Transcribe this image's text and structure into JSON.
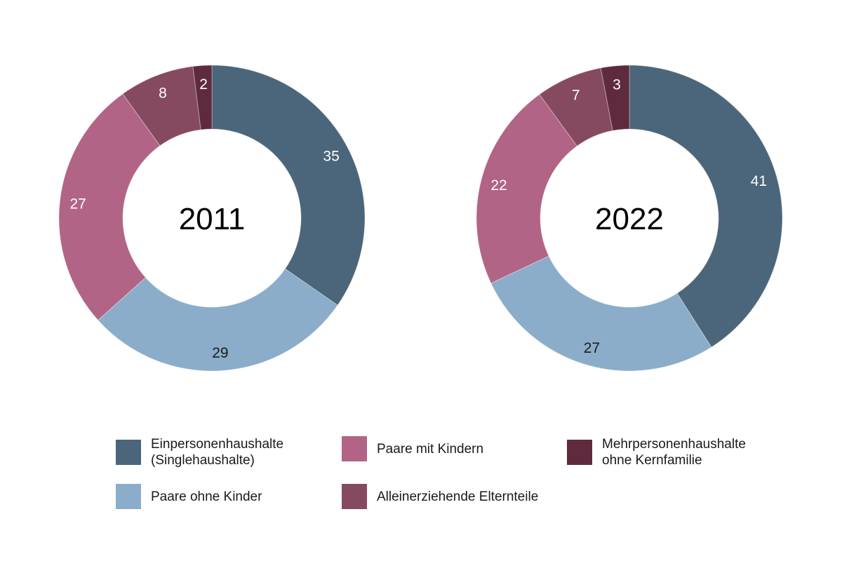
{
  "background_color": "#ffffff",
  "palette": {
    "segment_colors": [
      "#4b657a",
      "#8badc9",
      "#b16486",
      "#854a60",
      "#602a3e"
    ],
    "value_label_colors": [
      "#ffffff",
      "#1c1c1c",
      "#ffffff",
      "#ffffff",
      "#ffffff"
    ],
    "center_label_color": "#000000",
    "legend_text_color": "#1a1a1a"
  },
  "chart_data": [
    {
      "type": "pie",
      "subtype": "donut",
      "center_label": "2011",
      "categories": [
        "Einpersonenhaushalte (Singlehaushalte)",
        "Paare ohne Kinder",
        "Paare mit Kindern",
        "Alleinerziehende Elternteile",
        "Mehrpersonenhaushalte ohne Kernfamilie"
      ],
      "values": [
        35,
        29,
        27,
        8,
        2
      ],
      "start_angle_deg": 0,
      "direction": "clockwise",
      "value_labels_shown": true,
      "legend_position": "bottom"
    },
    {
      "type": "pie",
      "subtype": "donut",
      "center_label": "2022",
      "categories": [
        "Einpersonenhaushalte (Singlehaushalte)",
        "Paare ohne Kinder",
        "Paare mit Kindern",
        "Alleinerziehende Elternteile",
        "Mehrpersonenhaushalte ohne Kernfamilie"
      ],
      "values": [
        41,
        27,
        22,
        7,
        3
      ],
      "start_angle_deg": 0,
      "direction": "clockwise",
      "value_labels_shown": true,
      "legend_position": "bottom"
    }
  ],
  "legend": {
    "items": [
      {
        "label": "Einpersonenhaushalte\n(Singlehaushalte)",
        "color_index": 0
      },
      {
        "label": "Paare ohne Kinder",
        "color_index": 1
      },
      {
        "label": "Paare mit Kindern",
        "color_index": 2
      },
      {
        "label": "Alleinerziehende Elternteile",
        "color_index": 3
      },
      {
        "label": "Mehrpersonenhaushalte\nohne Kernfamilie",
        "color_index": 4
      }
    ]
  }
}
